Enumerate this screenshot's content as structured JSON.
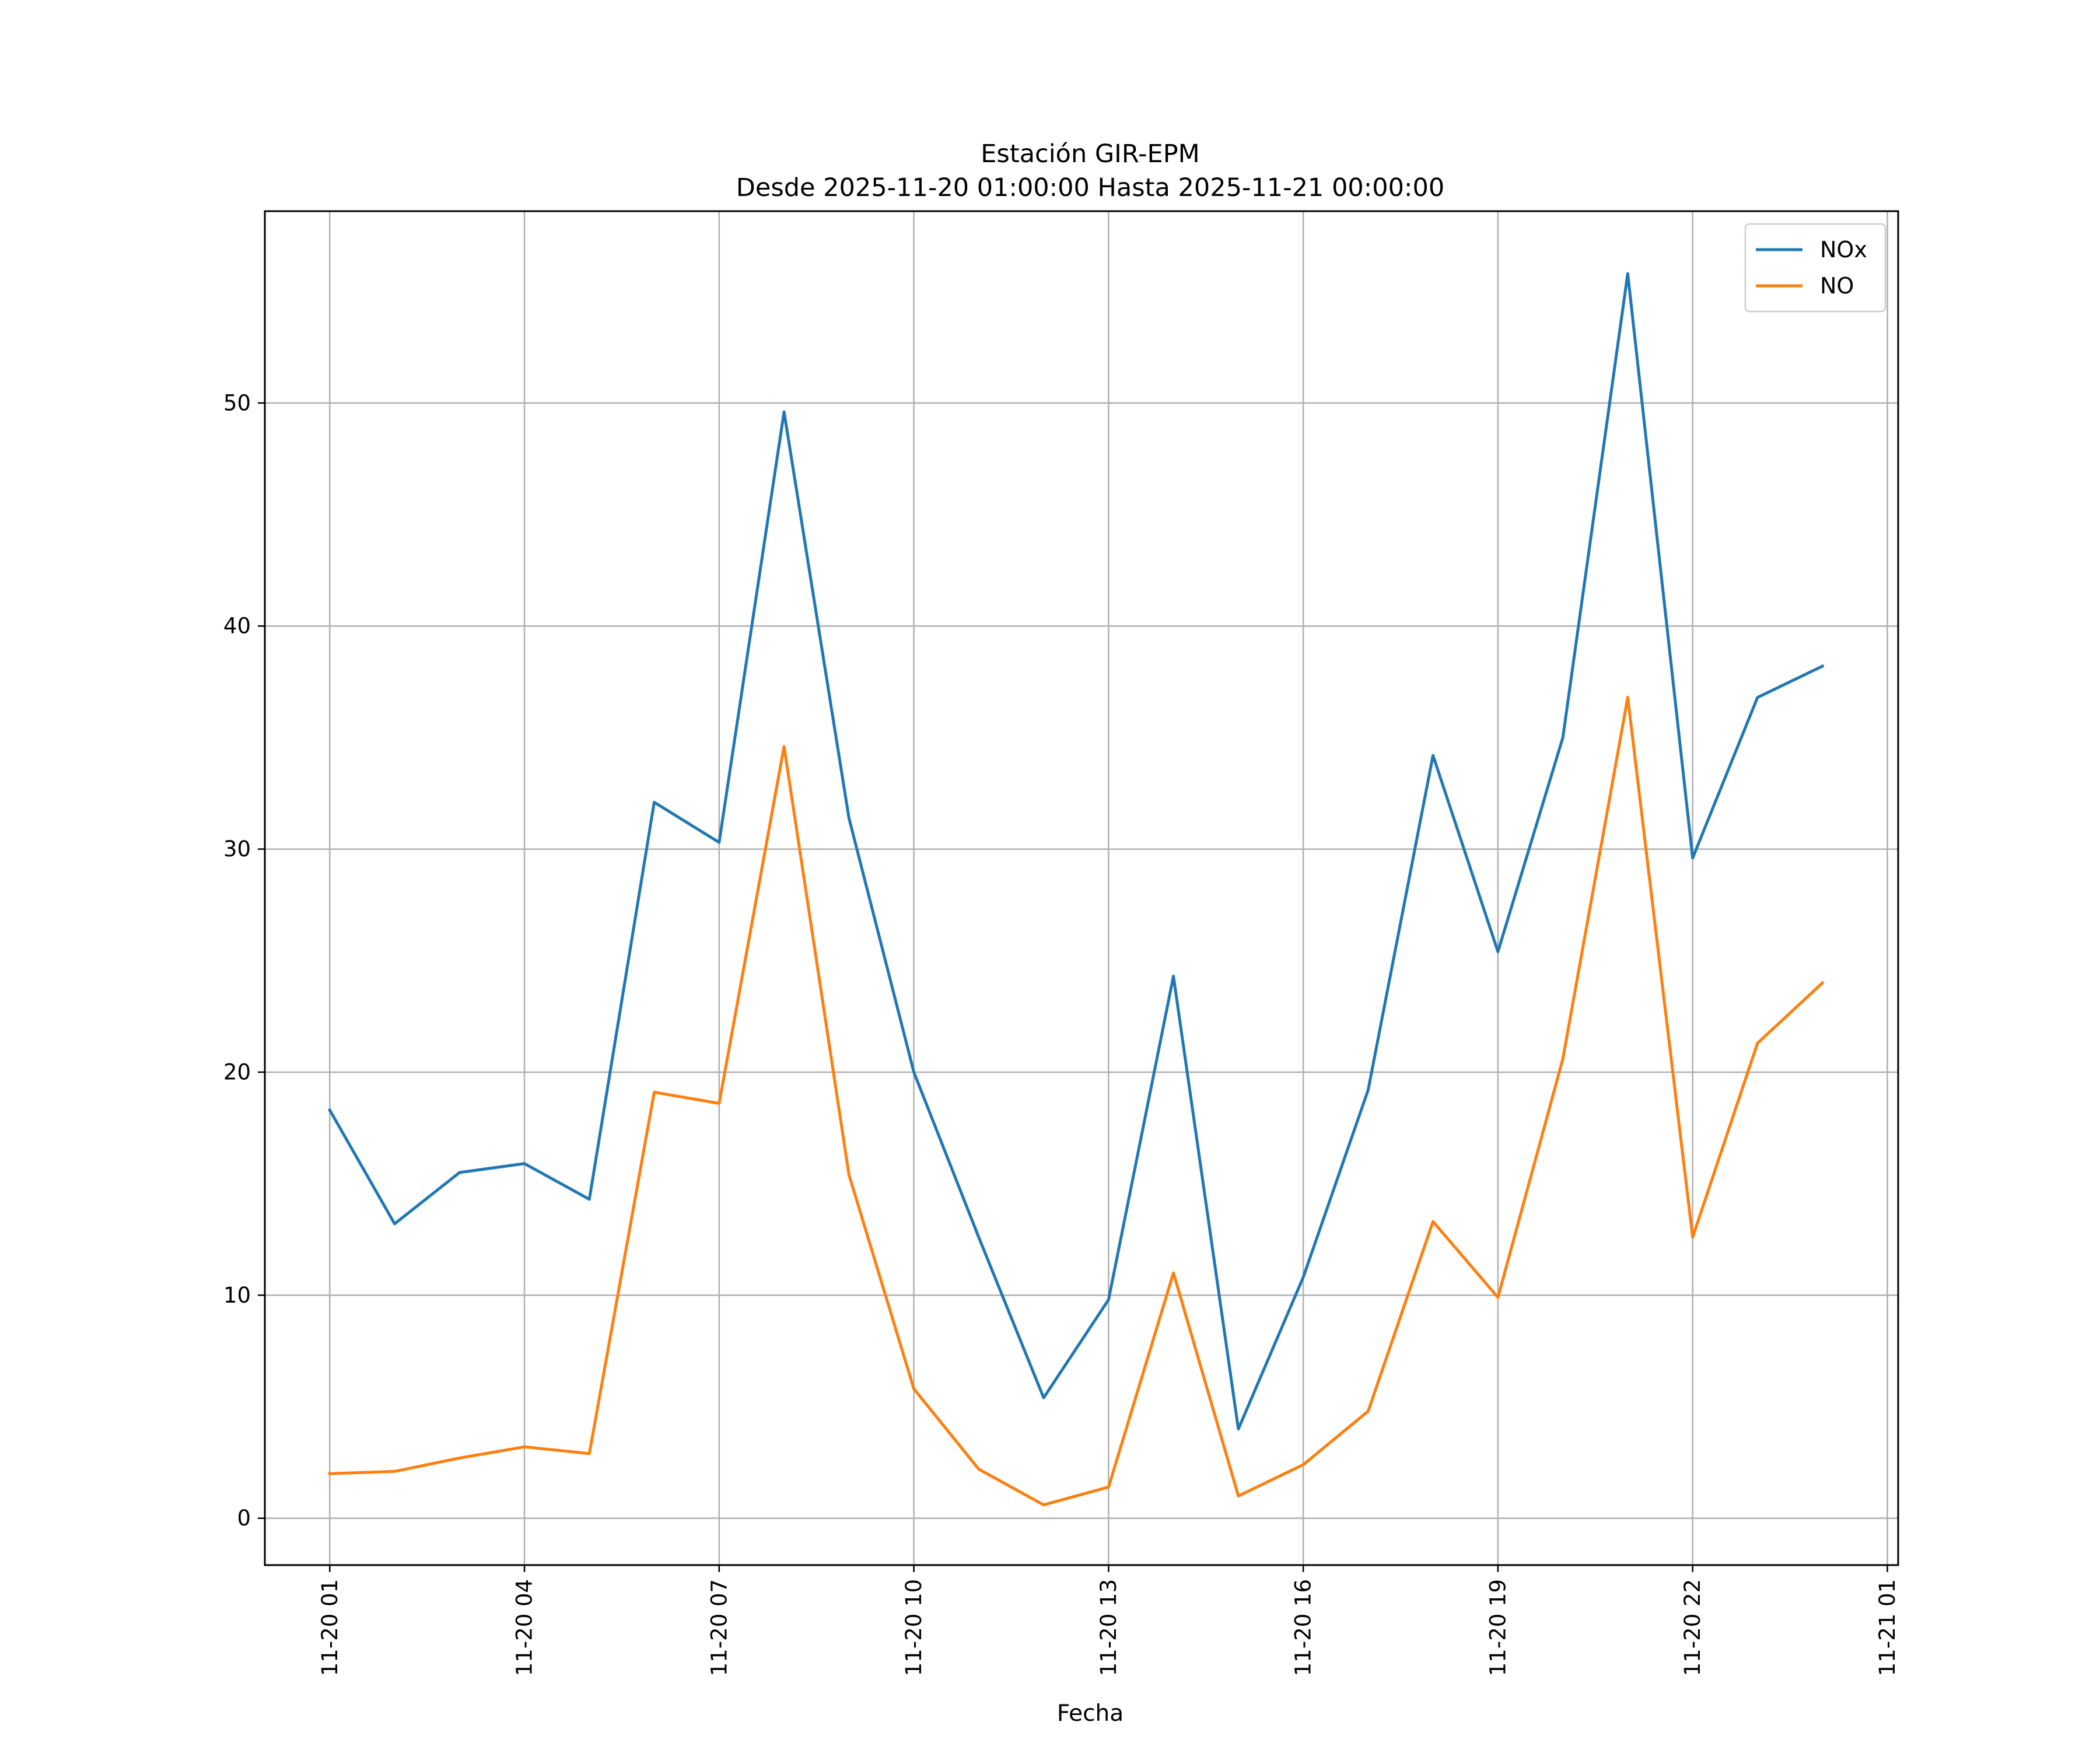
{
  "chart_data": {
    "type": "line",
    "title": "Estación GIR-EPM",
    "subtitle": "Desde 2025-11-20 01:00:00 Hasta 2025-11-21 00:00:00",
    "xlabel": "Fecha",
    "ylabel": "",
    "x": [
      "2025-11-20 01:00",
      "2025-11-20 02:00",
      "2025-11-20 03:00",
      "2025-11-20 04:00",
      "2025-11-20 05:00",
      "2025-11-20 06:00",
      "2025-11-20 07:00",
      "2025-11-20 08:00",
      "2025-11-20 09:00",
      "2025-11-20 10:00",
      "2025-11-20 11:00",
      "2025-11-20 12:00",
      "2025-11-20 13:00",
      "2025-11-20 14:00",
      "2025-11-20 15:00",
      "2025-11-20 16:00",
      "2025-11-20 17:00",
      "2025-11-20 18:00",
      "2025-11-20 19:00",
      "2025-11-20 20:00",
      "2025-11-20 21:00",
      "2025-11-20 22:00",
      "2025-11-20 23:00",
      "2025-11-21 00:00"
    ],
    "xlim": [
      "2025-11-20 00:00",
      "2025-11-21 01:10"
    ],
    "x_ticks": [
      {
        "t": "2025-11-20 01:00",
        "label": "11-20 01"
      },
      {
        "t": "2025-11-20 04:00",
        "label": "11-20 04"
      },
      {
        "t": "2025-11-20 07:00",
        "label": "11-20 07"
      },
      {
        "t": "2025-11-20 10:00",
        "label": "11-20 10"
      },
      {
        "t": "2025-11-20 13:00",
        "label": "11-20 13"
      },
      {
        "t": "2025-11-20 16:00",
        "label": "11-20 16"
      },
      {
        "t": "2025-11-20 19:00",
        "label": "11-20 19"
      },
      {
        "t": "2025-11-20 22:00",
        "label": "11-20 22"
      },
      {
        "t": "2025-11-21 01:00",
        "label": "11-21 01"
      }
    ],
    "ylim": [
      -2.1,
      58.6
    ],
    "y_ticks": [
      0,
      10,
      20,
      30,
      40,
      50
    ],
    "grid": true,
    "legend_position": "top-right",
    "series": [
      {
        "name": "NOx",
        "color": "#1f77b4",
        "values": [
          18.3,
          13.2,
          15.5,
          15.9,
          14.3,
          32.1,
          30.3,
          49.6,
          31.4,
          20.0,
          12.6,
          5.4,
          9.8,
          24.3,
          4.0,
          10.8,
          19.2,
          34.2,
          25.4,
          35.0,
          55.8,
          29.6,
          36.8,
          38.2
        ]
      },
      {
        "name": "NO",
        "color": "#ff7f0e",
        "values": [
          2.0,
          2.1,
          2.7,
          3.2,
          2.9,
          19.1,
          18.6,
          34.6,
          15.4,
          5.8,
          2.2,
          0.6,
          1.4,
          11.0,
          1.0,
          2.4,
          4.8,
          13.3,
          9.9,
          20.6,
          36.8,
          12.6,
          21.3,
          24.0
        ]
      }
    ]
  }
}
